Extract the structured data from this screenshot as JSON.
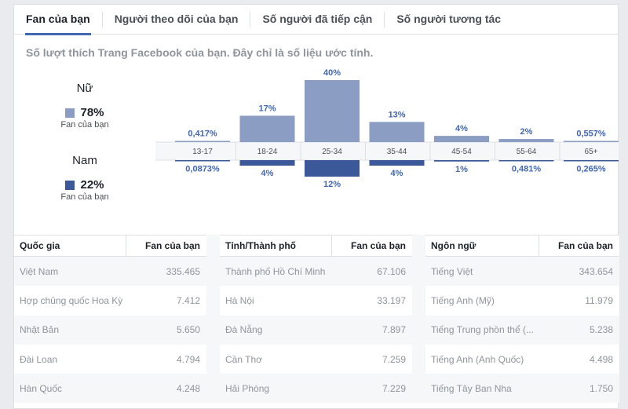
{
  "tabs": [
    {
      "label": "Fan của bạn",
      "active": true
    },
    {
      "label": "Người theo dõi của bạn",
      "active": false
    },
    {
      "label": "Số người đã tiếp cận",
      "active": false
    },
    {
      "label": "Số người tương tác",
      "active": false
    }
  ],
  "subtitle": "Số lượt thích Trang Facebook của bạn. Đây chỉ là số liệu ước tính.",
  "gender": {
    "female": {
      "label": "Nữ",
      "percent": "78%",
      "caption": "Fan của bạn",
      "color": "#8b9dc3"
    },
    "male": {
      "label": "Nam",
      "percent": "22%",
      "caption": "Fan của bạn",
      "color": "#3b5998"
    }
  },
  "chart_data": {
    "type": "bar",
    "categories": [
      "13-17",
      "18-24",
      "25-34",
      "35-44",
      "45-54",
      "55-64",
      "65+"
    ],
    "series": [
      {
        "name": "Nữ",
        "values": [
          0.417,
          17,
          40,
          13,
          4,
          2,
          0.557
        ],
        "labels": [
          "0,417%",
          "17%",
          "40%",
          "13%",
          "4%",
          "2%",
          "0,557%"
        ]
      },
      {
        "name": "Nam",
        "values": [
          0.0873,
          4,
          12,
          4,
          1,
          0.481,
          0.265
        ],
        "labels": [
          "0,0873%",
          "4%",
          "12%",
          "4%",
          "1%",
          "0,481%",
          "0,265%"
        ]
      }
    ],
    "colors": {
      "female": "#8b9dc3",
      "male": "#3b5998"
    }
  },
  "tables": [
    {
      "header_name": "Quốc gia",
      "header_value": "Fan của bạn",
      "rows": [
        {
          "name": "Việt Nam",
          "value": "335.465"
        },
        {
          "name": "Hợp chủng quốc Hoa Kỳ",
          "value": "7.412"
        },
        {
          "name": "Nhật Bản",
          "value": "5.650"
        },
        {
          "name": "Đài Loan",
          "value": "4.794"
        },
        {
          "name": "Hàn Quốc",
          "value": "4.248"
        }
      ]
    },
    {
      "header_name": "Tỉnh/Thành phố",
      "header_value": "Fan của bạn",
      "rows": [
        {
          "name": "Thành phố Hồ Chí Minh",
          "value": "67.106"
        },
        {
          "name": "Hà Nội",
          "value": "33.197"
        },
        {
          "name": "Đà Nẵng",
          "value": "7.897"
        },
        {
          "name": "Cần Thơ",
          "value": "7.259"
        },
        {
          "name": "Hải Phòng",
          "value": "7.229"
        }
      ]
    },
    {
      "header_name": "Ngôn ngữ",
      "header_value": "Fan của bạn",
      "rows": [
        {
          "name": "Tiếng Việt",
          "value": "343.654"
        },
        {
          "name": "Tiếng Anh (Mỹ)",
          "value": "11.979"
        },
        {
          "name": "Tiếng Trung phồn thể (...",
          "value": "5.238"
        },
        {
          "name": "Tiếng Anh (Anh Quốc)",
          "value": "4.498"
        },
        {
          "name": "Tiếng Tây Ban Nha",
          "value": "1.750"
        }
      ]
    }
  ]
}
